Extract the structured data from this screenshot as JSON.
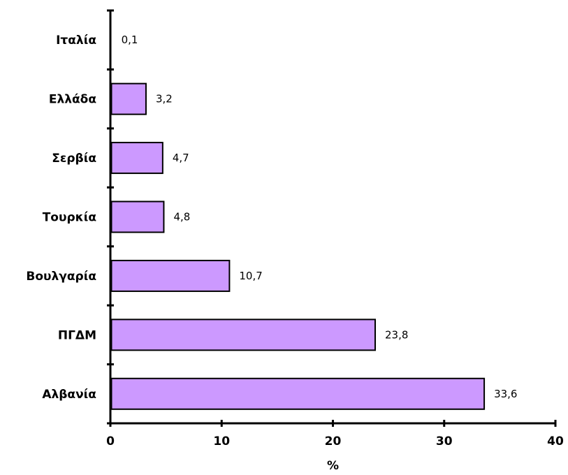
{
  "chart_data": {
    "type": "bar",
    "orientation": "horizontal",
    "categories": [
      "Ιταλία",
      "Ελλάδα",
      "Σερβία",
      "Τουρκία",
      "Βουλγαρία",
      "ΠΓΔΜ",
      "Αλβανία"
    ],
    "values": [
      0.1,
      3.2,
      4.7,
      4.8,
      10.7,
      23.8,
      33.6
    ],
    "data_labels": [
      "0,1",
      "3,2",
      "4,7",
      "4,8",
      "10,7",
      "23,8",
      "33,6"
    ],
    "xticks": [
      "0",
      "10",
      "20",
      "30",
      "40"
    ],
    "xlim": [
      0,
      40
    ],
    "xlabel": "%",
    "ylabel": "",
    "title": "",
    "grid": false,
    "legend": false,
    "bar_color": "#cc99ff",
    "bar_stroke": "#000000"
  }
}
